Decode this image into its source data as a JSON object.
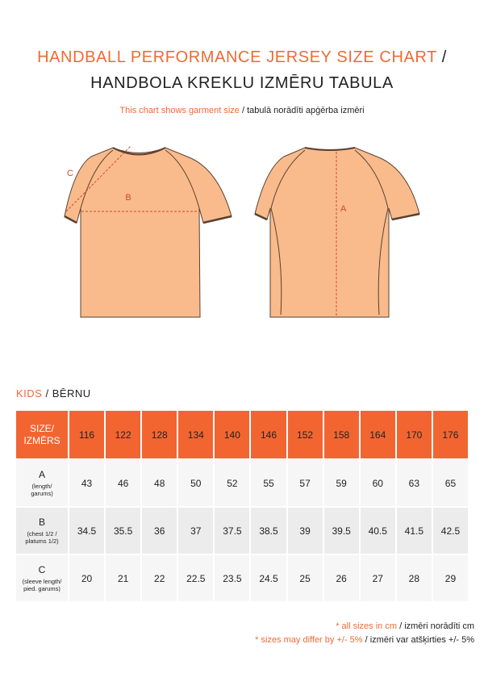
{
  "title": {
    "en": "HANDBALL PERFORMANCE JERSEY SIZE CHART",
    "separator": "/",
    "lv": "HANDBOLA KREKLU IZMĒRU TABULA"
  },
  "subtitle": {
    "en": "This chart shows garment size",
    "lv": "/ tabulā norādīti apģērba izmēri"
  },
  "diagram": {
    "labels": {
      "a": "A",
      "b": "B",
      "c": "C"
    }
  },
  "section": {
    "en": "KIDS",
    "lv": "/ BĒRNU"
  },
  "table": {
    "header_label": [
      "SIZE/",
      "IZMĒRS"
    ],
    "sizes": [
      116,
      122,
      128,
      134,
      140,
      146,
      152,
      158,
      164,
      170,
      176
    ],
    "rows": [
      {
        "label": "A",
        "description": [
          "(length/",
          "garums)"
        ],
        "values": [
          43,
          46,
          48,
          50,
          52,
          55,
          57,
          59,
          60,
          63,
          65
        ]
      },
      {
        "label": "B",
        "description": [
          "(chest 1/2 /",
          "platums 1/2)"
        ],
        "values": [
          34.5,
          35.5,
          36,
          37,
          37.5,
          38.5,
          39,
          39.5,
          40.5,
          41.5,
          42.5
        ]
      },
      {
        "label": "C",
        "description": [
          "(sleeve length/",
          "pied. garums)"
        ],
        "values": [
          20,
          21,
          22,
          22.5,
          23.5,
          24.5,
          25,
          26,
          27,
          28,
          29
        ]
      }
    ]
  },
  "notes": [
    {
      "en": "* all sizes in cm",
      "lv": "/ izmēri norādīti cm"
    },
    {
      "en": "* sizes may differ by +/- 5%",
      "lv": "/ izmēri var atšķirties +/- 5%"
    }
  ]
}
